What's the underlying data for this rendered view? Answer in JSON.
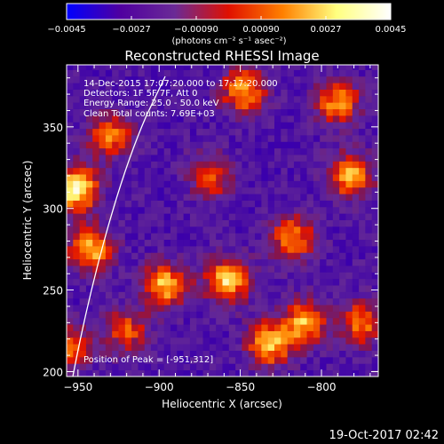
{
  "chart_data": {
    "type": "heatmap",
    "title": "Reconstructed RHESSI Image",
    "xlabel": "Heliocentric X (arcsec)",
    "ylabel": "Heliocentric Y (arcsec)",
    "xlim": [
      -957,
      -765
    ],
    "ylim": [
      197,
      388
    ],
    "x_ticks": [
      {
        "value": -950,
        "label": "−950"
      },
      {
        "value": -900,
        "label": "−900"
      },
      {
        "value": -850,
        "label": "−850"
      },
      {
        "value": -800,
        "label": "−800"
      }
    ],
    "y_ticks": [
      {
        "value": 200,
        "label": "200"
      },
      {
        "value": 250,
        "label": "250"
      },
      {
        "value": 300,
        "label": "300"
      },
      {
        "value": 350,
        "label": "350"
      }
    ],
    "colorbar": {
      "min": -0.0045,
      "max": 0.0045,
      "units": "(photons cm⁻² s⁻¹ asec⁻²)",
      "ticks": [
        {
          "value": -0.0045,
          "label": "−0.0045"
        },
        {
          "value": -0.0027,
          "label": "−0.0027"
        },
        {
          "value": -0.0009,
          "label": "−0.00090"
        },
        {
          "value": 0.0009,
          "label": "0.00090"
        },
        {
          "value": 0.0027,
          "label": "0.0027"
        },
        {
          "value": 0.0045,
          "label": "0.0045"
        }
      ],
      "colors": [
        "#0000ff",
        "#5000a0",
        "#6a2a96",
        "#e01000",
        "#ff8000",
        "#ffff80",
        "#ffffff"
      ]
    },
    "annotations": [
      "14-Dec-2015 17:07:20.000 to 17:17:20.000",
      "Detectors: 1F 5F 7F, Att 0",
      "Energy Range: 25.0 - 50.0 keV",
      "Clean     Total counts: 7.69E+03"
    ],
    "peak_label": "Position of Peak = [-951,312]",
    "sources": [
      {
        "x": -951,
        "y": 312,
        "value": 0.0045
      },
      {
        "x": -942,
        "y": 275,
        "value": 0.0033
      },
      {
        "x": -896,
        "y": 253,
        "value": 0.0033
      },
      {
        "x": -858,
        "y": 256,
        "value": 0.0035
      },
      {
        "x": -832,
        "y": 217,
        "value": 0.0033
      },
      {
        "x": -810,
        "y": 230,
        "value": 0.003
      },
      {
        "x": -782,
        "y": 320,
        "value": 0.003
      },
      {
        "x": -848,
        "y": 372,
        "value": 0.003
      },
      {
        "x": -818,
        "y": 282,
        "value": 0.0025
      },
      {
        "x": -930,
        "y": 345,
        "value": 0.0022
      },
      {
        "x": -775,
        "y": 230,
        "value": 0.0022
      },
      {
        "x": -868,
        "y": 320,
        "value": 0.0016
      },
      {
        "x": -920,
        "y": 225,
        "value": 0.0016
      },
      {
        "x": -790,
        "y": 365,
        "value": 0.0026
      },
      {
        "x": -955,
        "y": 215,
        "value": 0.0018
      }
    ],
    "baseline": -0.0018,
    "grid": false
  },
  "timestamp": "19-Oct-2017 02:42"
}
